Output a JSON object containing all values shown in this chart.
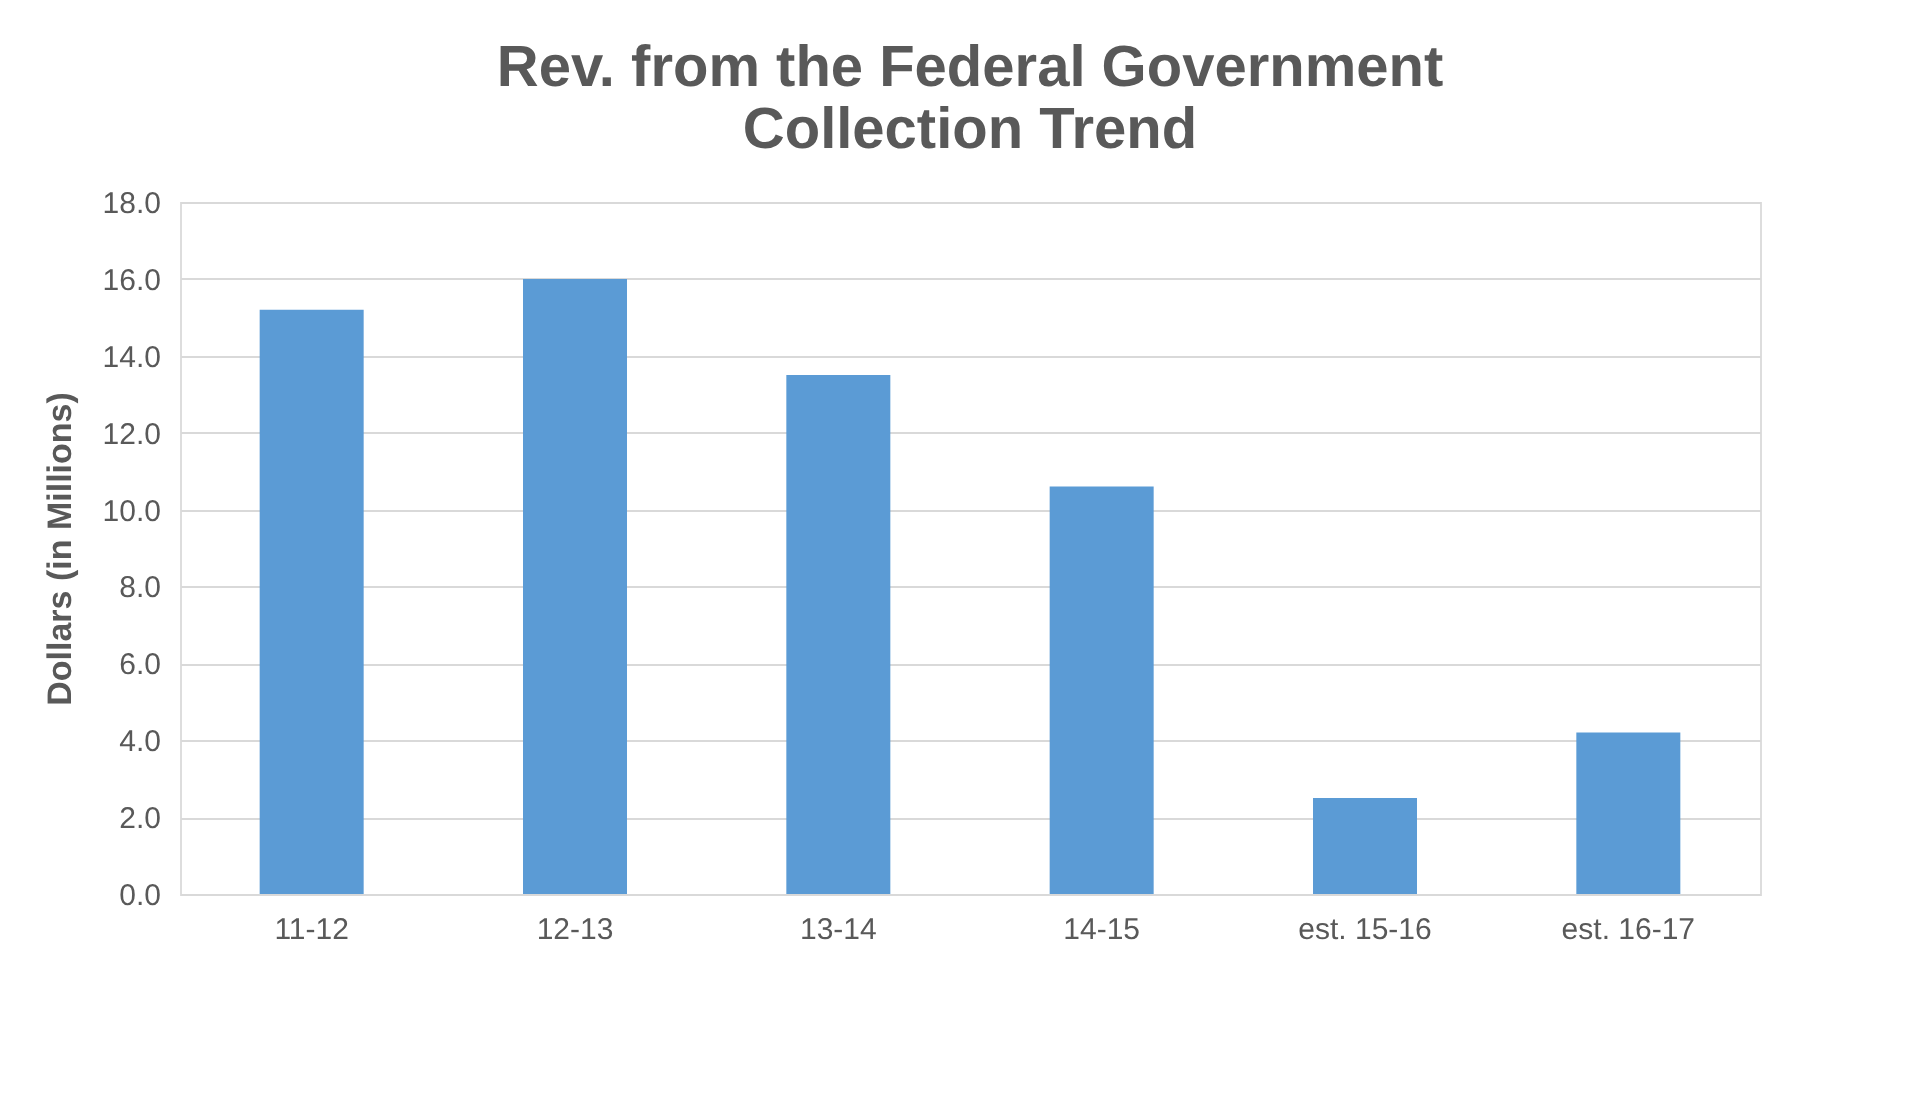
{
  "chart_data": {
    "type": "bar",
    "title": "Rev. from the Federal Government\nCollection Trend",
    "ylabel": "Dollars (in Millions)",
    "categories": [
      "11-12",
      "12-13",
      "13-14",
      "14-15",
      "est. 15-16",
      "est. 16-17"
    ],
    "values": [
      15.2,
      16.0,
      13.5,
      10.6,
      2.5,
      4.2
    ],
    "color": "#5b9bd5",
    "ylim": [
      0,
      18
    ],
    "yticks": [
      {
        "value": 0,
        "label": "0.0"
      },
      {
        "value": 2,
        "label": "2.0"
      },
      {
        "value": 4,
        "label": "4.0"
      },
      {
        "value": 6,
        "label": "6.0"
      },
      {
        "value": 8,
        "label": "8.0"
      },
      {
        "value": 10,
        "label": "10.0"
      },
      {
        "value": 12,
        "label": "12.0"
      },
      {
        "value": 14,
        "label": "14.0"
      },
      {
        "value": 16,
        "label": "16.0"
      },
      {
        "value": 18,
        "label": "18.0"
      }
    ],
    "grid": "y"
  }
}
